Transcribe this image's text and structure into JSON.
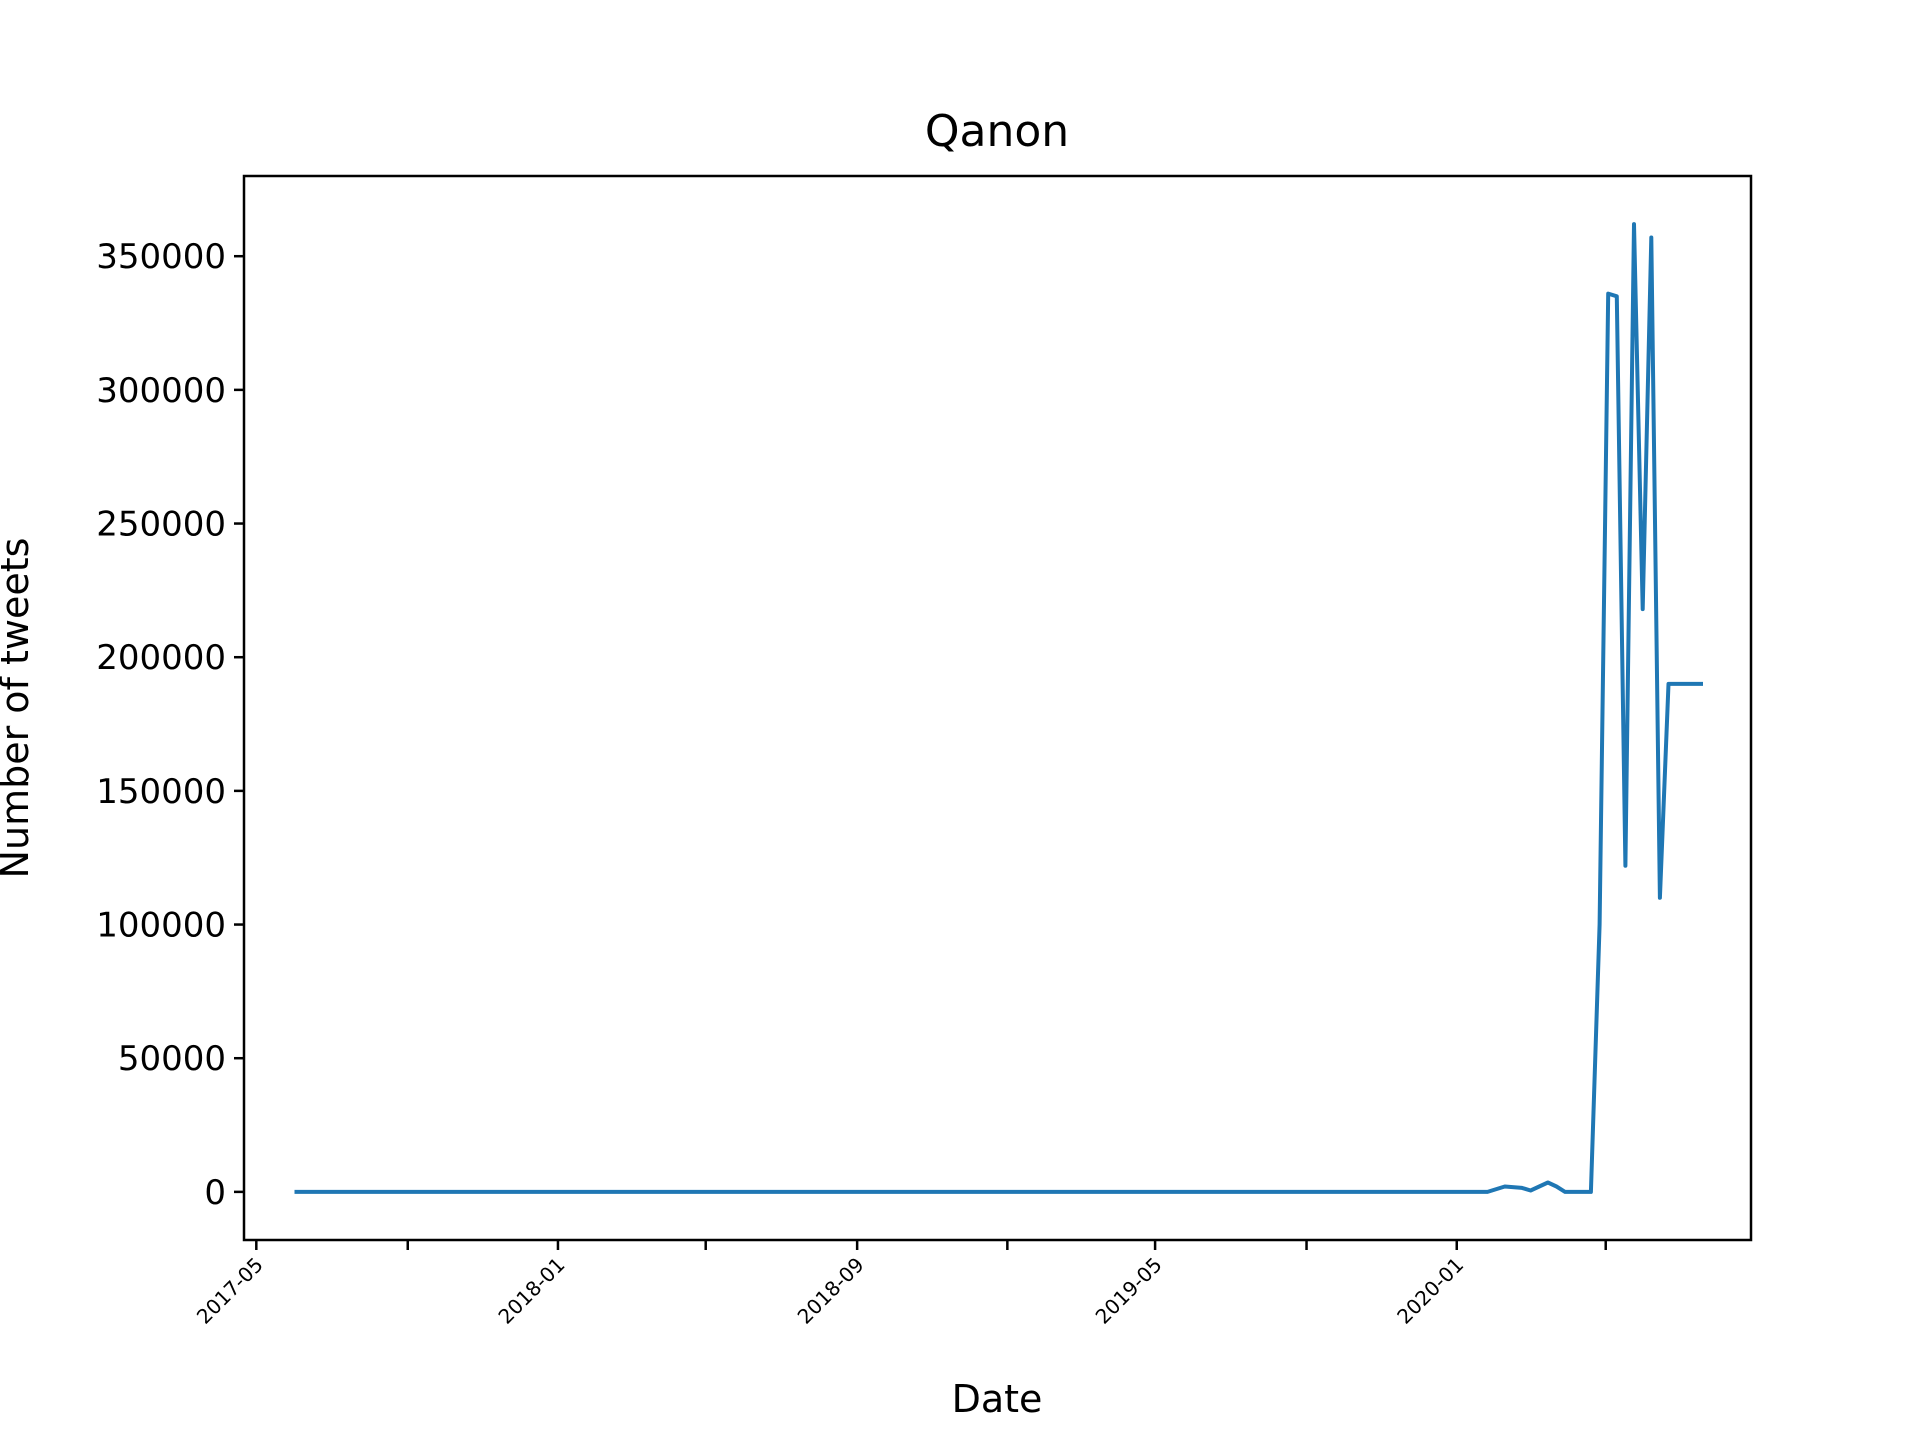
{
  "chart_data": {
    "type": "line",
    "title": "Qanon",
    "xlabel": "Date",
    "ylabel": "Number of tweets",
    "x_ticks": [
      "2017-05",
      "2017-09",
      "2018-01",
      "2018-05",
      "2018-09",
      "2019-01",
      "2019-05",
      "2019-09",
      "2020-01",
      "2020-05"
    ],
    "x_tick_labels": [
      "2017-05",
      "",
      "2018-01",
      "",
      "2018-09",
      "",
      "2019-05",
      "",
      "2020-01",
      ""
    ],
    "xlim": [
      "2017-04-21",
      "2020-08-27"
    ],
    "y_ticks": [
      0,
      50000,
      100000,
      150000,
      200000,
      250000,
      300000,
      350000
    ],
    "y_tick_labels": [
      "0",
      "50000",
      "100000",
      "150000",
      "200000",
      "250000",
      "300000",
      "350000"
    ],
    "ylim": [
      -18000,
      380000
    ],
    "grid": false,
    "legend": "none",
    "colors": {
      "line": "#1f77b4",
      "axes": "#000000",
      "background": "#ffffff"
    },
    "series": [
      {
        "x": [
          "2017-06-01",
          "2020-01-26",
          "2020-02-09",
          "2020-02-23",
          "2020-03-01",
          "2020-03-15",
          "2020-03-22",
          "2020-03-29",
          "2020-04-05",
          "2020-04-19",
          "2020-04-26",
          "2020-05-03",
          "2020-05-10",
          "2020-05-17",
          "2020-05-24",
          "2020-05-31",
          "2020-06-07",
          "2020-06-14",
          "2020-06-21",
          "2020-06-28",
          "2020-07-05",
          "2020-07-12",
          "2020-07-19"
        ],
        "y": [
          0,
          0,
          2000,
          1500,
          500,
          3500,
          2000,
          0,
          0,
          0,
          100000,
          336000,
          335000,
          122000,
          362000,
          218000,
          357000,
          110000,
          190000,
          190000,
          190000,
          190000,
          190000
        ]
      }
    ]
  }
}
